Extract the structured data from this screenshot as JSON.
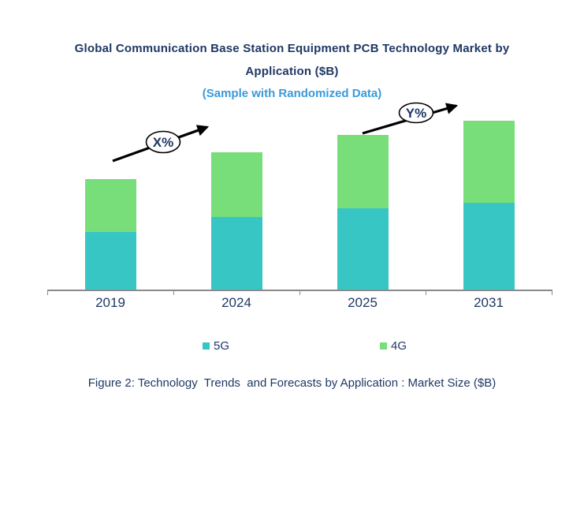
{
  "title": {
    "line1": "Global Communication Base Station Equipment PCB Technology Market by",
    "line2": "Application ($B)",
    "subtitle": "(Sample with Randomized Data)"
  },
  "annotations": [
    {
      "label": "X%",
      "between": [
        "2019",
        "2024"
      ]
    },
    {
      "label": "Y%",
      "between": [
        "2025",
        "2031"
      ]
    }
  ],
  "legend": {
    "items": [
      {
        "label": "5G",
        "color": "#38C6C4"
      },
      {
        "label": "4G",
        "color": "#77DE7A"
      }
    ]
  },
  "caption": "Figure 2: Technology  Trends  and Forecasts by Application : Market Size ($B)",
  "colors": {
    "title_navy": "#1F3864",
    "subtitle_blue": "#3A9AD9",
    "axis_gray": "#8a8a8a",
    "series_5g_teal": "#38C6C4",
    "series_4g_green": "#77DE7A",
    "background": "#FFFFFF"
  },
  "chart_data": {
    "type": "bar",
    "stacked": true,
    "title": "Global Communication Base Station Equipment PCB Technology Market by Application ($B)",
    "subtitle": "(Sample with Randomized Data)",
    "xlabel": "",
    "ylabel": "Market Size ($B)",
    "categories": [
      "2019",
      "2024",
      "2025",
      "2031"
    ],
    "series": [
      {
        "name": "5G",
        "color": "#38C6C4",
        "values": [
          7.3,
          9.2,
          10.3,
          11.0
        ]
      },
      {
        "name": "4G",
        "color": "#77DE7A",
        "values": [
          6.7,
          8.2,
          9.3,
          10.4
        ]
      }
    ],
    "totals": [
      14.0,
      17.4,
      19.6,
      21.4
    ],
    "ylim": [
      0,
      25
    ],
    "grid": false,
    "y_axis_visible": false,
    "legend_position": "bottom",
    "annotations": [
      {
        "label": "X%",
        "between": [
          "2019",
          "2024"
        ]
      },
      {
        "label": "Y%",
        "between": [
          "2025",
          "2031"
        ]
      }
    ]
  }
}
